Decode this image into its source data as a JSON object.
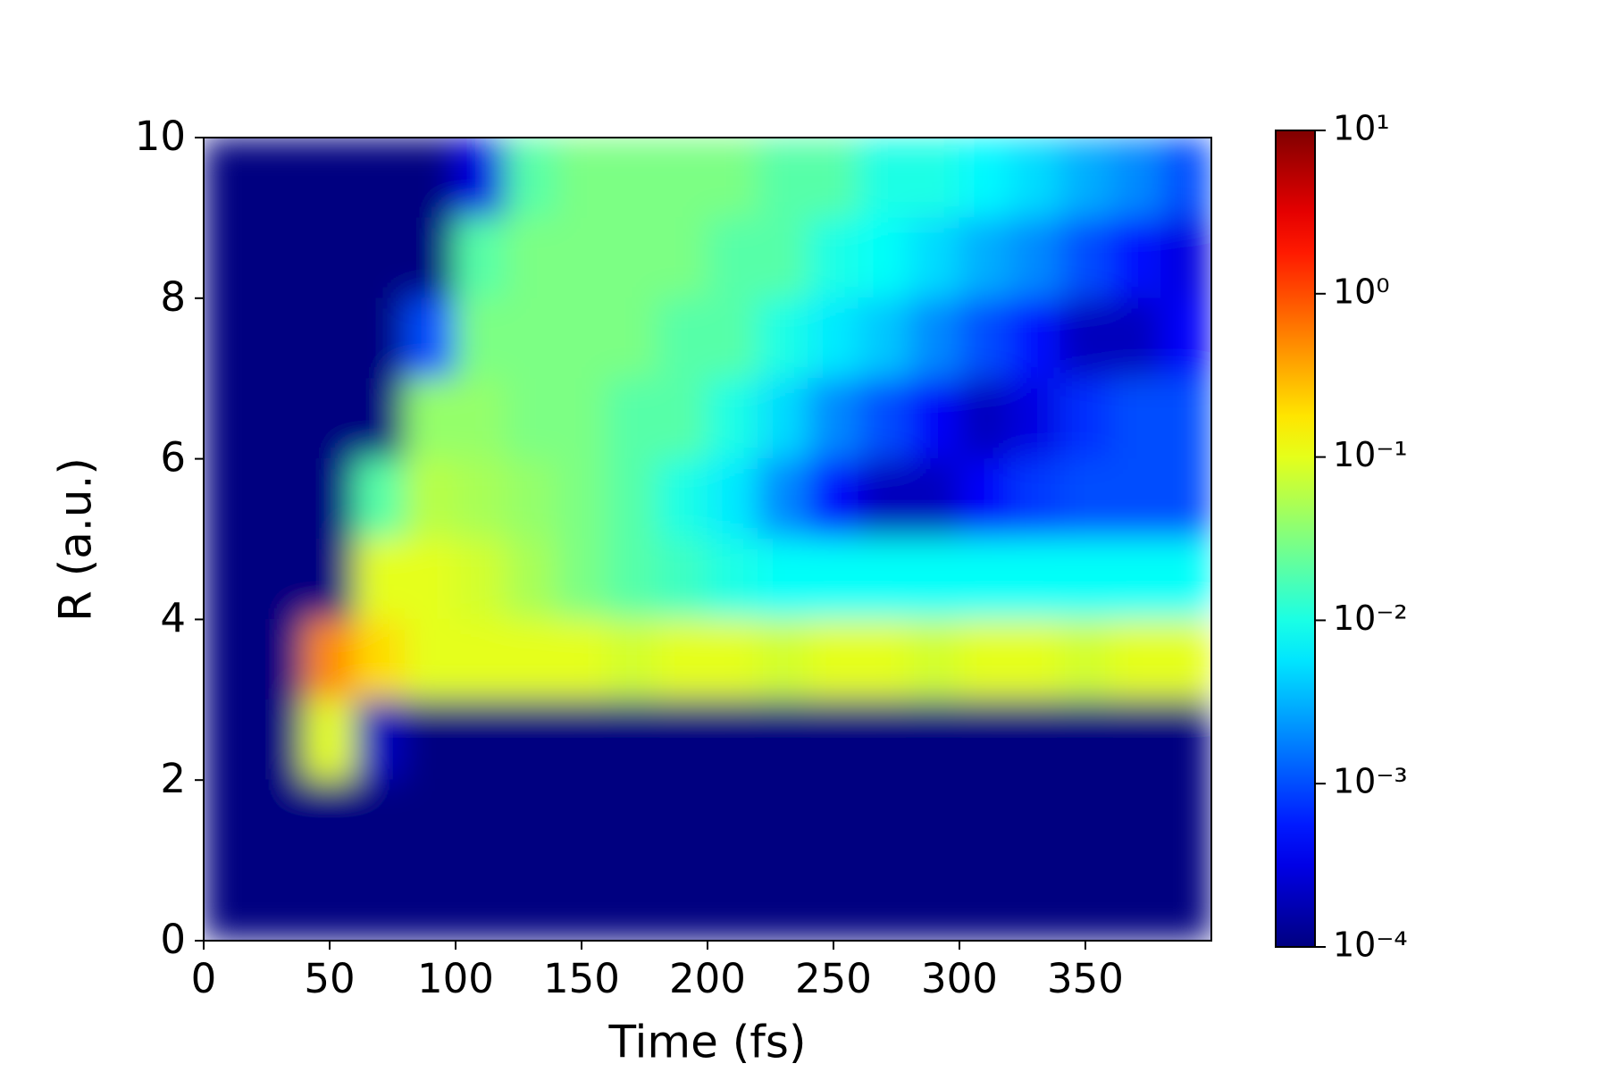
{
  "chart_data": {
    "type": "heatmap",
    "xlabel": "Time (fs)",
    "ylabel": "R (a.u.)",
    "x": [
      10,
      30,
      50,
      70,
      90,
      110,
      130,
      150,
      170,
      190,
      210,
      230,
      250,
      270,
      290,
      310,
      330,
      350,
      370,
      390
    ],
    "y": [
      9.5,
      8.5,
      7.5,
      6.5,
      5.5,
      4.5,
      3.5,
      2.5,
      1.5,
      0.5
    ],
    "z": [
      [
        0.0001,
        0.0001,
        0.0001,
        0.0001,
        0.0001,
        0.0003,
        0.02,
        0.03,
        0.03,
        0.03,
        0.03,
        0.02,
        0.02,
        0.01,
        0.01,
        0.007,
        0.005,
        0.003,
        0.002,
        0.001
      ],
      [
        0.0001,
        0.0001,
        0.0001,
        0.0001,
        0.0001,
        0.02,
        0.03,
        0.03,
        0.03,
        0.03,
        0.02,
        0.02,
        0.01,
        0.008,
        0.005,
        0.003,
        0.002,
        0.001,
        0.0005,
        0.0003
      ],
      [
        0.0001,
        0.0001,
        0.0001,
        0.0001,
        0.001,
        0.03,
        0.03,
        0.03,
        0.03,
        0.02,
        0.02,
        0.01,
        0.006,
        0.004,
        0.002,
        0.001,
        0.0005,
        0.0002,
        0.0002,
        0.0004
      ],
      [
        0.0001,
        0.0001,
        0.0001,
        0.0001,
        0.04,
        0.04,
        0.03,
        0.03,
        0.02,
        0.02,
        0.01,
        0.005,
        0.002,
        0.001,
        0.0004,
        0.0002,
        0.0003,
        0.0007,
        0.001,
        0.001
      ],
      [
        0.0001,
        0.0001,
        0.0001,
        0.02,
        0.06,
        0.05,
        0.04,
        0.03,
        0.02,
        0.01,
        0.006,
        0.002,
        0.0005,
        0.0002,
        0.0002,
        0.0004,
        0.0008,
        0.001,
        0.001,
        0.001
      ],
      [
        0.0001,
        0.0001,
        0.0001,
        0.1,
        0.1,
        0.08,
        0.05,
        0.03,
        0.02,
        0.015,
        0.01,
        0.008,
        0.008,
        0.008,
        0.008,
        0.008,
        0.008,
        0.008,
        0.008,
        0.008
      ],
      [
        0.0001,
        0.0001,
        0.5,
        0.2,
        0.1,
        0.1,
        0.1,
        0.1,
        0.08,
        0.1,
        0.1,
        0.08,
        0.1,
        0.1,
        0.08,
        0.1,
        0.1,
        0.08,
        0.1,
        0.1
      ],
      [
        0.0001,
        0.0001,
        0.1,
        0.0002,
        0.0001,
        0.0001,
        0.0001,
        0.0001,
        0.0001,
        0.0001,
        0.0001,
        0.0001,
        0.0001,
        0.0001,
        0.0001,
        0.0001,
        0.0001,
        0.0001,
        0.0001,
        0.0001
      ],
      [
        0.0001,
        0.0001,
        0.0001,
        0.0001,
        0.0001,
        0.0001,
        0.0001,
        0.0001,
        0.0001,
        0.0001,
        0.0001,
        0.0001,
        0.0001,
        0.0001,
        0.0001,
        0.0001,
        0.0001,
        0.0001,
        0.0001,
        0.0001
      ],
      [
        0.0001,
        0.0001,
        0.0001,
        0.0001,
        0.0001,
        0.0001,
        0.0001,
        0.0001,
        0.0001,
        0.0001,
        0.0001,
        0.0001,
        0.0001,
        0.0001,
        0.0001,
        0.0001,
        0.0001,
        0.0001,
        0.0001,
        0.0001
      ]
    ],
    "xlim": [
      0,
      400
    ],
    "ylim": [
      0,
      10
    ],
    "xticks": [
      0,
      50,
      100,
      150,
      200,
      250,
      300,
      350
    ],
    "yticks": [
      0,
      2,
      4,
      6,
      8,
      10
    ],
    "colormap": "jet",
    "color_scale": "log",
    "clim": [
      0.0001,
      10
    ],
    "cticks": [
      {
        "value": 0.0001,
        "label": "10⁻⁴"
      },
      {
        "value": 0.001,
        "label": "10⁻³"
      },
      {
        "value": 0.01,
        "label": "10⁻²"
      },
      {
        "value": 0.1,
        "label": "10⁻¹"
      },
      {
        "value": 1,
        "label": "10⁰"
      },
      {
        "value": 10,
        "label": "10¹"
      }
    ]
  }
}
